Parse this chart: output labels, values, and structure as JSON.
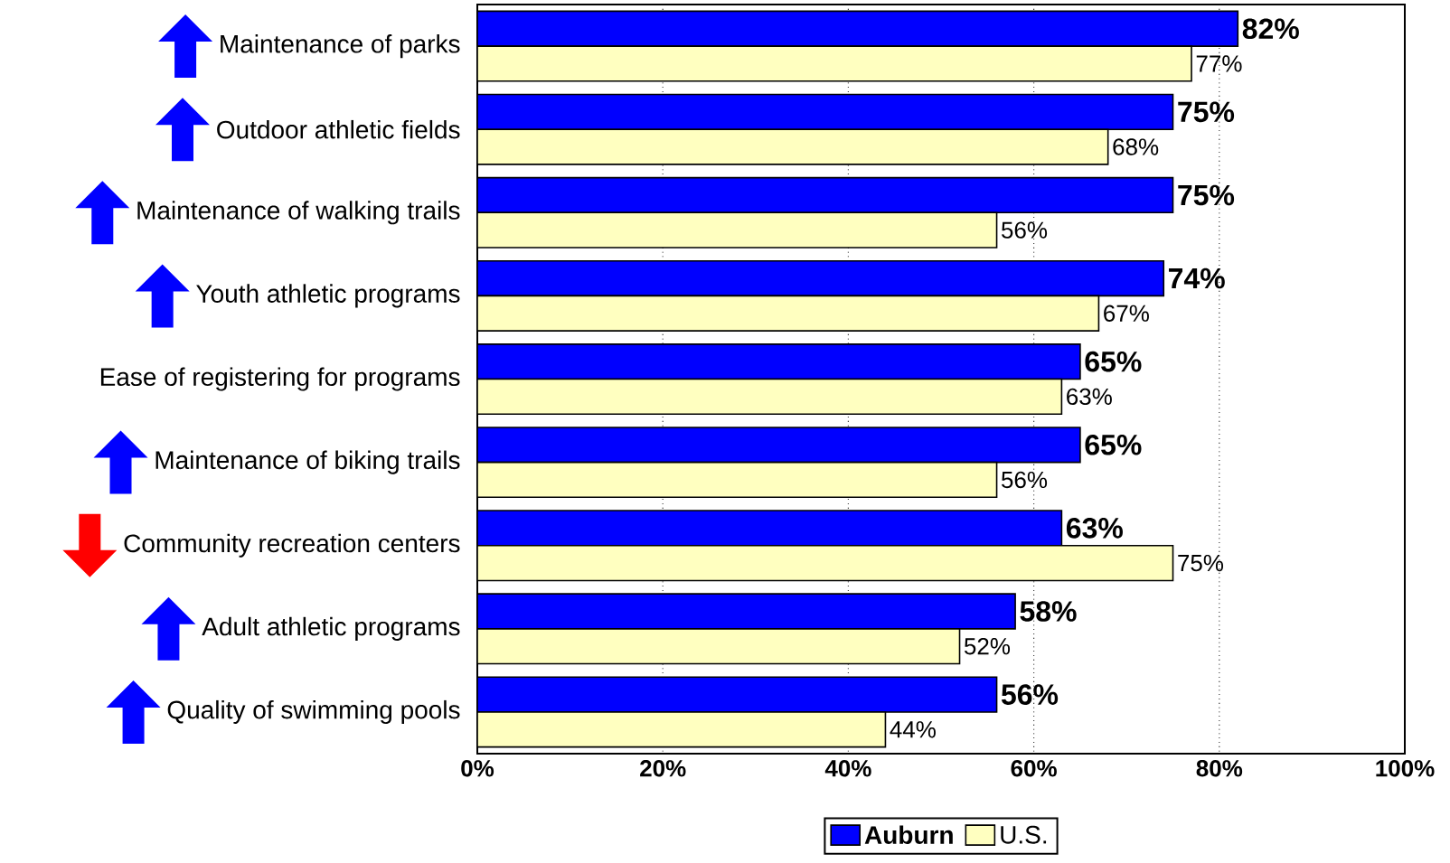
{
  "chart_data": {
    "type": "bar",
    "orientation": "horizontal",
    "categories": [
      "Maintenance of parks",
      "Outdoor athletic fields",
      "Maintenance of walking trails",
      "Youth athletic programs",
      "Ease of registering for programs",
      "Maintenance of biking trails",
      "Community recreation centers",
      "Adult athletic programs",
      "Quality of swimming pools"
    ],
    "series": [
      {
        "name": "Auburn",
        "color": "#0000ff",
        "values": [
          82,
          75,
          75,
          74,
          65,
          65,
          63,
          58,
          56
        ],
        "value_labels": [
          "82%",
          "75%",
          "75%",
          "74%",
          "65%",
          "65%",
          "63%",
          "58%",
          "56%"
        ]
      },
      {
        "name": "U.S.",
        "color": "#ffffc0",
        "values": [
          77,
          68,
          56,
          67,
          63,
          56,
          75,
          52,
          44
        ],
        "value_labels": [
          "77%",
          "68%",
          "56%",
          "67%",
          "63%",
          "56%",
          "75%",
          "52%",
          "44%"
        ]
      }
    ],
    "xlim": [
      0,
      100
    ],
    "xticks": [
      {
        "value": 0,
        "label": "0%"
      },
      {
        "value": 20,
        "label": "20%"
      },
      {
        "value": 40,
        "label": "40%"
      },
      {
        "value": 60,
        "label": "60%"
      },
      {
        "value": 80,
        "label": "80%"
      },
      {
        "value": 100,
        "label": "100%"
      }
    ],
    "grid": "x",
    "legend": "bottom"
  }
}
